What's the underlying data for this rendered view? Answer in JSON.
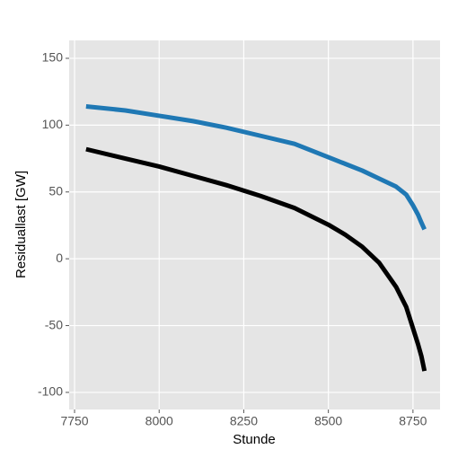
{
  "chart_data": {
    "type": "line",
    "x_label": "Stunde",
    "y_label": "Residuallast [GW]",
    "x": [
      7784,
      7900,
      8000,
      8100,
      8200,
      8300,
      8400,
      8500,
      8550,
      8600,
      8650,
      8700,
      8730,
      8750,
      8765,
      8775,
      8784
    ],
    "series": [
      {
        "color": "#1f78b4",
        "values": [
          114,
          111,
          107,
          103,
          98,
          92,
          86,
          76,
          71,
          66,
          60,
          54,
          48,
          40,
          33,
          27,
          22
        ]
      },
      {
        "color": "#000000",
        "values": [
          82,
          75,
          69,
          62,
          55,
          47,
          38,
          25.5,
          18,
          9,
          -3,
          -21,
          -36,
          -52,
          -64,
          -73,
          -84
        ]
      }
    ],
    "xlim": [
      7734,
      8830
    ],
    "xticks": [
      7750,
      8000,
      8250,
      8500,
      8750
    ],
    "ylim": [
      -112.8,
      163.4
    ],
    "yticks": [
      -100,
      -50,
      0,
      50,
      100,
      150
    ],
    "grid": true
  }
}
